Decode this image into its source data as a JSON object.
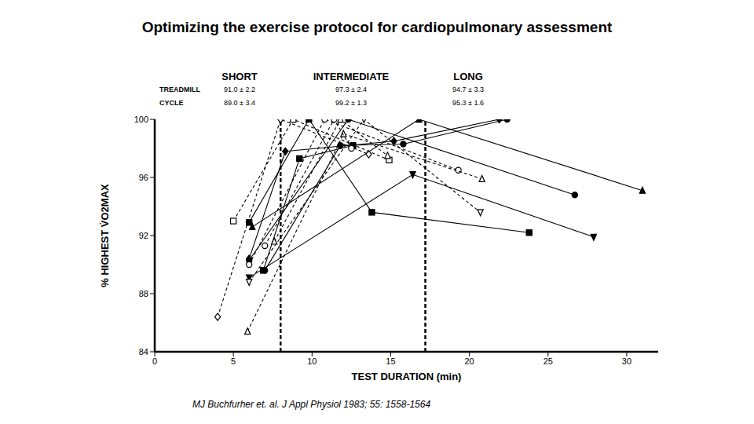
{
  "chart_data": {
    "type": "scatter",
    "title": "Optimizing the exercise protocol for cardiopulmonary assessment",
    "x_label": "TEST DURATION (min)",
    "y_label": "% HIGHEST V̇O2MAX",
    "xlim": [
      0,
      32
    ],
    "xticks": [
      0,
      5,
      10,
      15,
      20,
      25,
      30
    ],
    "ylim": [
      84,
      100
    ],
    "yticks": [
      84,
      88,
      92,
      96,
      100
    ],
    "grid": false,
    "dividers": [
      8,
      17.2
    ],
    "header": {
      "regions": [
        "SHORT",
        "INTERMEDIATE",
        "LONG"
      ],
      "rows": [
        {
          "label": "TREADMILL",
          "values": [
            "91.0 ± 2.2",
            "97.3 ± 2.4",
            "94.7 ± 3.3"
          ]
        },
        {
          "label": "CYCLE",
          "values": [
            "89.0 ± 3.4",
            "99.2 ± 1.3",
            "95.3 ± 1.6"
          ]
        }
      ]
    },
    "source": "MJ Buchfurher et. al. J Appl Physiol 1983; 55: 1558-1564",
    "series": [
      {
        "color": "#000000",
        "marker": "filled_triangle",
        "line_style": "solid",
        "x": [
          6.2,
          16.8,
          31
        ],
        "values": [
          92.6,
          100,
          95.1
        ]
      },
      {
        "color": "#000000",
        "marker": "filled_circle",
        "line_style": "solid",
        "x": [
          6,
          12.3,
          26.7
        ],
        "values": [
          90.3,
          100,
          94.8
        ]
      },
      {
        "color": "#000000",
        "marker": "filled_triangle_down",
        "line_style": "solid",
        "x": [
          6,
          16.4,
          27.9
        ],
        "values": [
          89.1,
          96.2,
          91.9
        ]
      },
      {
        "color": "#000000",
        "marker": "filled_square",
        "line_style": "solid",
        "x": [
          6,
          9.8,
          13.8,
          23.8
        ],
        "values": [
          92.9,
          100,
          93.6,
          92.2
        ]
      },
      {
        "color": "#000000",
        "marker": "filled_diamond",
        "line_style": "solid",
        "x": [
          6,
          8.3,
          15.2,
          21.9
        ],
        "values": [
          90.4,
          97.8,
          98.5,
          100
        ]
      },
      {
        "color": "#000000",
        "marker": "filled_circle",
        "line_style": "solid",
        "x": [
          7,
          11.8,
          15.8,
          22.4
        ],
        "values": [
          89.6,
          98.2,
          98.3,
          100
        ]
      },
      {
        "color": "#000000",
        "marker": "filled_square",
        "line_style": "solid",
        "x": [
          6.9,
          9.2,
          12.6
        ],
        "values": [
          89.6,
          97.3,
          98.2
        ]
      },
      {
        "color": "#000000",
        "marker": "open_diamond",
        "line_style": "dashed",
        "x": [
          4,
          8,
          13.6
        ],
        "values": [
          86.4,
          100,
          97.6
        ]
      },
      {
        "color": "#000000",
        "marker": "open_square",
        "line_style": "dashed",
        "x": [
          5,
          8.8,
          14.9
        ],
        "values": [
          93,
          100,
          97.2
        ]
      },
      {
        "color": "#000000",
        "marker": "open_circle",
        "line_style": "dashed",
        "x": [
          6,
          10.8,
          19.3
        ],
        "values": [
          90,
          100,
          96.5
        ]
      },
      {
        "color": "#000000",
        "marker": "open_triangle",
        "line_style": "dashed",
        "x": [
          5.9,
          12,
          20.8
        ],
        "values": [
          85.4,
          99,
          95.9
        ]
      },
      {
        "color": "#000000",
        "marker": "open_triangle_down",
        "line_style": "dashed",
        "x": [
          6,
          13.3,
          20.7
        ],
        "values": [
          88.8,
          100,
          93.6
        ]
      },
      {
        "color": "#000000",
        "marker": "open_circle",
        "line_style": "dashed",
        "x": [
          7,
          11.4,
          12.5
        ],
        "values": [
          91.3,
          100,
          98
        ]
      },
      {
        "color": "#000000",
        "marker": "open_triangle",
        "line_style": "dashed",
        "x": [
          7.6,
          11.8,
          14.8
        ],
        "values": [
          91.6,
          100,
          97.5
        ]
      }
    ]
  }
}
